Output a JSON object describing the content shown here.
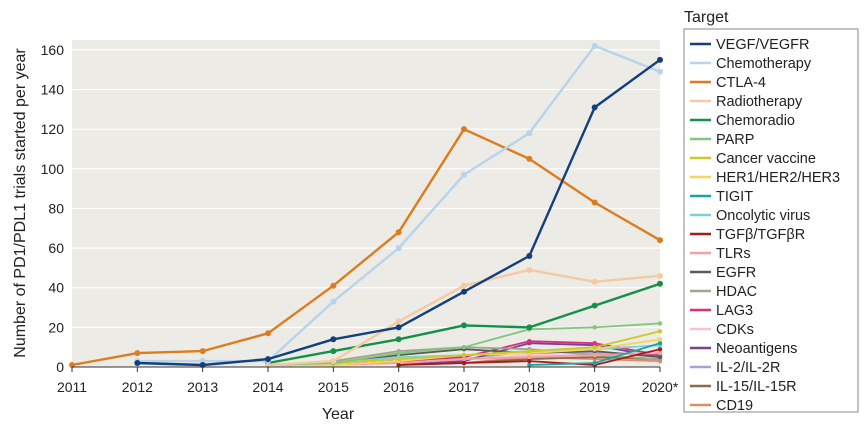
{
  "chart_data": {
    "type": "line",
    "xlabel": "Year",
    "ylabel": "Number of PD1/PDL1 trials started per year",
    "legend_title": "Target",
    "legend_position": "right",
    "grid": true,
    "x": [
      "2011",
      "2012",
      "2013",
      "2014",
      "2015",
      "2016",
      "2017",
      "2018",
      "2019",
      "2020*"
    ],
    "yticks": [
      "0",
      "20",
      "40",
      "60",
      "80",
      "100",
      "120",
      "140",
      "160"
    ],
    "ylim": [
      0,
      165
    ],
    "series": [
      {
        "name": "VEGF/VEGFR",
        "color": "#123f7d",
        "values": [
          null,
          2,
          1,
          4,
          14,
          20,
          38,
          56,
          131,
          155
        ]
      },
      {
        "name": "Chemotherapy",
        "color": "#b8d4ec",
        "values": [
          null,
          3,
          3,
          3,
          33,
          60,
          97,
          118,
          162,
          149
        ]
      },
      {
        "name": "CTLA-4",
        "color": "#dd7c1e",
        "values": [
          1,
          7,
          8,
          17,
          41,
          68,
          120,
          105,
          83,
          64
        ]
      },
      {
        "name": "Radiotherapy",
        "color": "#f5c9a1",
        "values": [
          null,
          null,
          null,
          1,
          3,
          23,
          41,
          49,
          43,
          46
        ]
      },
      {
        "name": "Chemoradio",
        "color": "#13914a",
        "values": [
          null,
          null,
          null,
          2,
          8,
          14,
          21,
          20,
          31,
          42
        ]
      },
      {
        "name": "PARP",
        "color": "#7fc67f",
        "values": [
          null,
          null,
          null,
          1,
          2,
          7,
          10,
          19,
          20,
          22
        ]
      },
      {
        "name": "Cancer vaccine",
        "color": "#c9c92c",
        "values": [
          null,
          null,
          null,
          1,
          2,
          4,
          6,
          8,
          10,
          18
        ]
      },
      {
        "name": "HER1/HER2/HER3",
        "color": "#f6d260",
        "values": [
          null,
          null,
          null,
          1,
          1,
          3,
          6,
          7,
          9,
          14
        ]
      },
      {
        "name": "TIGIT",
        "color": "#11a7a3",
        "values": [
          null,
          null,
          null,
          null,
          null,
          null,
          null,
          1,
          2,
          12
        ]
      },
      {
        "name": "Oncolytic virus",
        "color": "#7cd2d2",
        "values": [
          null,
          null,
          null,
          1,
          2,
          5,
          6,
          8,
          9,
          11
        ]
      },
      {
        "name": "TGFβ/TGFβR",
        "color": "#a51c1c",
        "values": [
          null,
          null,
          null,
          null,
          null,
          1,
          2,
          3,
          1,
          9
        ]
      },
      {
        "name": "TLRs",
        "color": "#f5a0a0",
        "values": [
          null,
          null,
          null,
          1,
          1,
          2,
          4,
          5,
          6,
          7
        ]
      },
      {
        "name": "EGFR",
        "color": "#5a5a5a",
        "values": [
          null,
          null,
          null,
          1,
          2,
          6,
          9,
          7,
          8,
          5
        ]
      },
      {
        "name": "HDAC",
        "color": "#a5a58e",
        "values": [
          null,
          null,
          null,
          1,
          3,
          8,
          10,
          9,
          6,
          4
        ]
      },
      {
        "name": "LAG3",
        "color": "#d6317a",
        "values": [
          null,
          null,
          null,
          null,
          1,
          3,
          5,
          13,
          12,
          6
        ]
      },
      {
        "name": "CDKs",
        "color": "#f4c1d8",
        "values": [
          null,
          null,
          null,
          null,
          1,
          2,
          4,
          6,
          6,
          8
        ]
      },
      {
        "name": "Neoantigens",
        "color": "#7e3f96",
        "values": [
          null,
          null,
          null,
          null,
          null,
          1,
          3,
          12,
          11,
          5
        ]
      },
      {
        "name": "IL-2/IL-2R",
        "color": "#a9a0d8",
        "values": [
          null,
          null,
          null,
          null,
          null,
          1,
          4,
          8,
          7,
          6
        ]
      },
      {
        "name": "IL-15/IL-15R",
        "color": "#8a6a4c",
        "values": [
          null,
          null,
          null,
          null,
          null,
          1,
          2,
          4,
          5,
          4
        ]
      },
      {
        "name": "CD19",
        "color": "#e08a66",
        "values": [
          null,
          null,
          null,
          null,
          1,
          3,
          2,
          5,
          4,
          3
        ]
      }
    ]
  }
}
